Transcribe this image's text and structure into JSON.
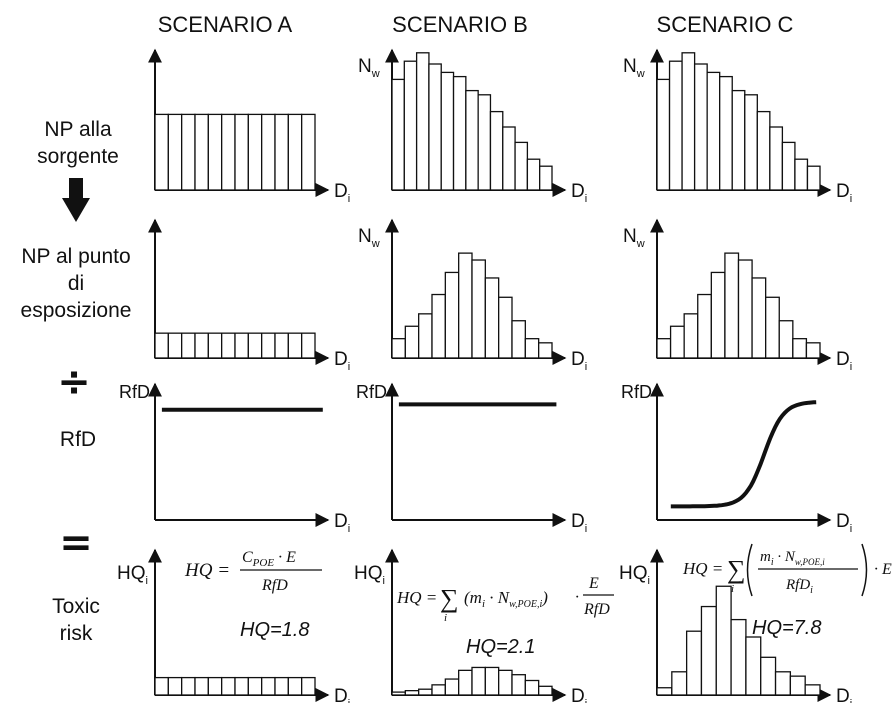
{
  "scenarios": [
    "SCENARIO A",
    "SCENARIO B",
    "SCENARIO C"
  ],
  "row_labels": {
    "source": [
      "NP alla",
      "sorgente"
    ],
    "exposure": [
      "NP al punto",
      "di",
      "esposizione"
    ],
    "rfd": "RfD",
    "risk": [
      "Toxic",
      "risk"
    ]
  },
  "symbols": {
    "divide": "÷",
    "equals": "="
  },
  "axis_labels": {
    "nw": "N",
    "nw_sub": "w",
    "di": "D",
    "di_sub": "i",
    "rfd": "RfD",
    "hq": "HQ",
    "hq_sub": "i"
  },
  "formulas": {
    "A": {
      "lhs": "HQ =",
      "num": "C",
      "num_sub": "POE",
      "num_tail": " · E",
      "den": "RfD"
    },
    "B": {
      "lhs": "HQ =",
      "sigma": "∑",
      "idx": "i",
      "term": "(m",
      "term_sub1": "i",
      "term_mid": " · N",
      "term_sub2": "w,POE,i",
      "term_end": ")",
      "dot": "·",
      "num": "E",
      "den": "RfD"
    },
    "C": {
      "lhs": "HQ =",
      "sigma": "∑",
      "idx": "i",
      "num": "m",
      "num_sub1": "i",
      "num_mid": " · N",
      "num_sub2": "w,POE,i",
      "den": "RfD",
      "den_sub": "i",
      "tail": "· E"
    }
  },
  "hq_values": {
    "A": "HQ=1.8",
    "B": "HQ=2.1",
    "C": "HQ=7.8"
  },
  "chart_data": [
    {
      "type": "bar",
      "scenario": "SCENARIO A",
      "row": "NP alla sorgente",
      "values": [
        0.54,
        0.54,
        0.54,
        0.54,
        0.54,
        0.54,
        0.54,
        0.54,
        0.54,
        0.54,
        0.54,
        0.54
      ],
      "ylim": [
        0,
        1
      ]
    },
    {
      "type": "bar",
      "scenario": "SCENARIO B",
      "row": "NP alla sorgente",
      "values": [
        0.79,
        0.92,
        0.98,
        0.9,
        0.84,
        0.81,
        0.71,
        0.68,
        0.56,
        0.45,
        0.34,
        0.22,
        0.17
      ],
      "ylim": [
        0,
        1
      ]
    },
    {
      "type": "bar",
      "scenario": "SCENARIO C",
      "row": "NP alla sorgente",
      "values": [
        0.79,
        0.92,
        0.98,
        0.9,
        0.84,
        0.81,
        0.71,
        0.68,
        0.56,
        0.45,
        0.34,
        0.22,
        0.17
      ],
      "ylim": [
        0,
        1
      ]
    },
    {
      "type": "bar",
      "scenario": "SCENARIO A",
      "row": "NP al punto di esposizione",
      "values": [
        0.18,
        0.18,
        0.18,
        0.18,
        0.18,
        0.18,
        0.18,
        0.18,
        0.18,
        0.18,
        0.18,
        0.18
      ],
      "ylim": [
        0,
        1
      ]
    },
    {
      "type": "bar",
      "scenario": "SCENARIO B",
      "row": "NP al punto di esposizione",
      "values": [
        0.14,
        0.23,
        0.32,
        0.46,
        0.62,
        0.76,
        0.71,
        0.58,
        0.44,
        0.27,
        0.14,
        0.11
      ],
      "ylim": [
        0,
        1
      ]
    },
    {
      "type": "bar",
      "scenario": "SCENARIO C",
      "row": "NP al punto di esposizione",
      "values": [
        0.14,
        0.23,
        0.32,
        0.46,
        0.62,
        0.76,
        0.71,
        0.58,
        0.44,
        0.27,
        0.14,
        0.11
      ],
      "ylim": [
        0,
        1
      ]
    },
    {
      "type": "line",
      "scenario": "SCENARIO A",
      "row": "RfD",
      "shape": "constant",
      "level": 0.81,
      "x_range": [
        0.04,
        0.97
      ]
    },
    {
      "type": "line",
      "scenario": "SCENARIO B",
      "row": "RfD",
      "shape": "constant",
      "level": 0.85,
      "x_range": [
        0.04,
        0.95
      ]
    },
    {
      "type": "line",
      "scenario": "SCENARIO C",
      "row": "RfD",
      "shape": "sigmoid",
      "low": 0.1,
      "high": 0.87,
      "midpoint": 0.62,
      "x_range": [
        0.08,
        0.92
      ]
    },
    {
      "type": "bar",
      "scenario": "SCENARIO A",
      "row": "Toxic risk",
      "values": [
        0.12,
        0.12,
        0.12,
        0.12,
        0.12,
        0.12,
        0.12,
        0.12,
        0.12,
        0.12,
        0.12,
        0.12
      ],
      "ylim": [
        0,
        1
      ]
    },
    {
      "type": "bar",
      "scenario": "SCENARIO B",
      "row": "Toxic risk",
      "values": [
        0.02,
        0.03,
        0.04,
        0.07,
        0.11,
        0.17,
        0.19,
        0.19,
        0.17,
        0.14,
        0.1,
        0.06
      ],
      "ylim": [
        0,
        1
      ]
    },
    {
      "type": "bar",
      "scenario": "SCENARIO C",
      "row": "Toxic risk",
      "values": [
        0.05,
        0.16,
        0.44,
        0.61,
        0.75,
        0.52,
        0.4,
        0.26,
        0.16,
        0.13,
        0.07
      ],
      "ylim": [
        0,
        1
      ]
    }
  ]
}
